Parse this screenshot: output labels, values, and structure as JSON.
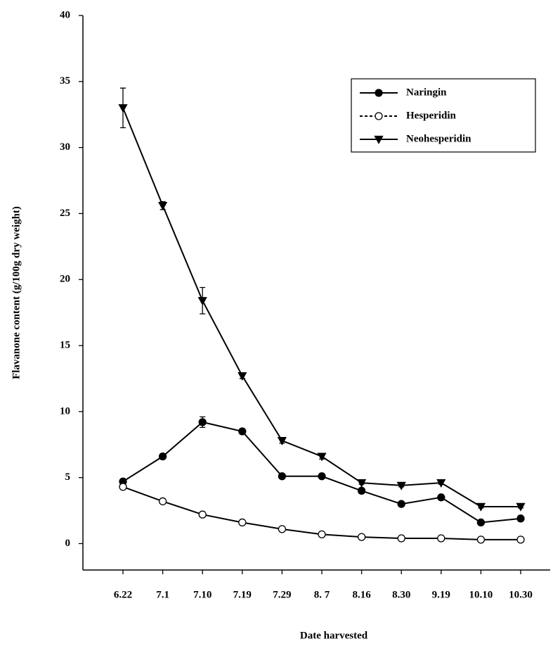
{
  "chart_data": {
    "type": "line",
    "xlabel": "Date harvested",
    "ylabel": "Flavanone content (g/100g dry weight)",
    "categories": [
      "6.22",
      "7.1",
      "7.10",
      "7.19",
      "7.29",
      "8. 7",
      "8.16",
      "8.30",
      "9.19",
      "10.10",
      "10.30"
    ],
    "series": [
      {
        "name": "Naringin",
        "color": "#000000",
        "marker": "circle",
        "filled": true,
        "values": [
          4.7,
          6.6,
          9.2,
          8.5,
          5.1,
          5.1,
          4.0,
          3.0,
          3.5,
          1.6,
          1.9
        ],
        "errors": [
          0.2,
          0.2,
          0.4,
          0.2,
          0.1,
          0.1,
          0.2,
          0.1,
          0.1,
          0.1,
          0.1
        ]
      },
      {
        "name": "Hesperidin",
        "color": "#000000",
        "marker": "circle",
        "filled": false,
        "values": [
          4.3,
          3.2,
          2.2,
          1.6,
          1.1,
          0.7,
          0.5,
          0.4,
          0.4,
          0.3,
          0.3
        ],
        "errors": [
          0.2,
          0.1,
          0.1,
          0.1,
          0.1,
          0.1,
          0.1,
          0.1,
          0.1,
          0.1,
          0.1
        ]
      },
      {
        "name": "Neohesperidin",
        "color": "#000000",
        "marker": "triangle-down",
        "filled": true,
        "values": [
          33.0,
          25.6,
          18.4,
          12.7,
          7.8,
          6.6,
          4.6,
          4.4,
          4.6,
          2.8,
          2.8
        ],
        "errors": [
          1.5,
          0.3,
          1.0,
          0.2,
          0.2,
          0.2,
          0.1,
          0.1,
          0.1,
          0.1,
          0.1
        ]
      }
    ],
    "ylim": [
      -2,
      40
    ],
    "yticks": [
      0,
      5,
      10,
      15,
      20,
      25,
      30,
      35,
      40
    ],
    "grid": false,
    "legend": "upper right"
  }
}
